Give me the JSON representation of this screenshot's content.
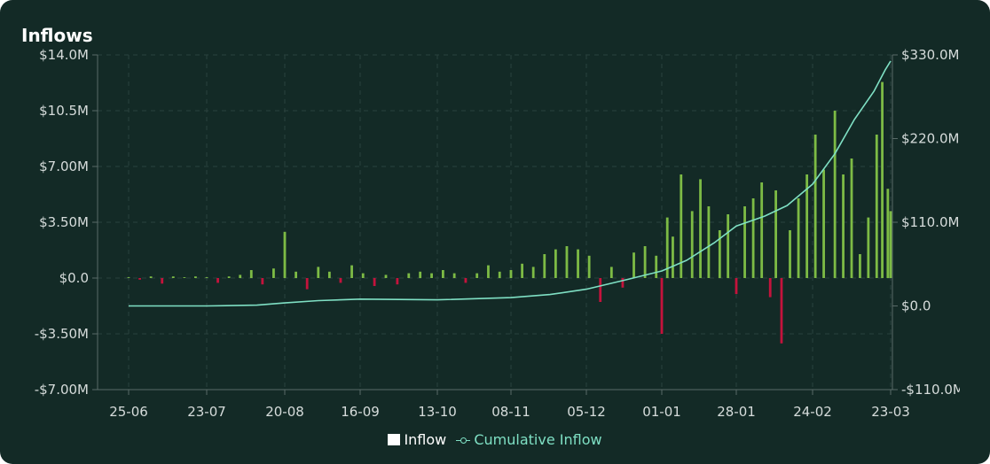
{
  "title": "Inflows",
  "legend": {
    "inflow": "Inflow",
    "cumulative": "Cumulative Inflow"
  },
  "colors": {
    "background": "#132a26",
    "positive_bar": "#7dbb45",
    "negative_bar": "#c4133c",
    "cumulative_line": "#7fe0c4",
    "grid": "#2a413d",
    "axis": "#5a6b68"
  },
  "chart_data": {
    "type": "bar",
    "x_tick_labels": [
      "25-06",
      "23-07",
      "20-08",
      "16-09",
      "13-10",
      "08-11",
      "05-12",
      "01-01",
      "28-01",
      "24-02",
      "23-03"
    ],
    "y_left": {
      "tick_labels": [
        "$14.0M",
        "$10.5M",
        "$7.00M",
        "$3.50M",
        "$0.0",
        "-$3.50M",
        "-$7.00M"
      ],
      "tick_values": [
        14.0,
        10.5,
        7.0,
        3.5,
        0.0,
        -3.5,
        -7.0
      ],
      "range": [
        -7.0,
        14.0
      ],
      "unit": "$M"
    },
    "y_right": {
      "tick_labels": [
        "$330.0M",
        "$220.0M",
        "$110.0M",
        "$0.0",
        "-$110.0M"
      ],
      "tick_values": [
        330,
        220,
        110,
        0,
        -110
      ],
      "range": [
        -110,
        330
      ],
      "unit": "$M"
    },
    "grid": true,
    "legend_position": "bottom-center",
    "series": [
      {
        "name": "Inflow",
        "axis": "left",
        "points": [
          [
            "25-06",
            0.05
          ],
          [
            "29-06",
            -0.1
          ],
          [
            "03-07",
            0.1
          ],
          [
            "07-07",
            -0.35
          ],
          [
            "11-07",
            0.1
          ],
          [
            "15-07",
            0.05
          ],
          [
            "19-07",
            0.1
          ],
          [
            "23-07",
            0.05
          ],
          [
            "27-07",
            -0.3
          ],
          [
            "31-07",
            0.1
          ],
          [
            "04-08",
            0.2
          ],
          [
            "08-08",
            0.5
          ],
          [
            "12-08",
            -0.4
          ],
          [
            "16-08",
            0.6
          ],
          [
            "20-08",
            2.9
          ],
          [
            "24-08",
            0.4
          ],
          [
            "28-08",
            -0.7
          ],
          [
            "01-09",
            0.7
          ],
          [
            "05-09",
            0.4
          ],
          [
            "09-09",
            -0.3
          ],
          [
            "13-09",
            0.8
          ],
          [
            "17-09",
            0.3
          ],
          [
            "21-09",
            -0.5
          ],
          [
            "25-09",
            0.2
          ],
          [
            "29-09",
            -0.4
          ],
          [
            "03-10",
            0.3
          ],
          [
            "07-10",
            0.4
          ],
          [
            "11-10",
            0.3
          ],
          [
            "15-10",
            0.5
          ],
          [
            "19-10",
            0.3
          ],
          [
            "23-10",
            -0.3
          ],
          [
            "27-10",
            0.3
          ],
          [
            "31-10",
            0.8
          ],
          [
            "04-11",
            0.4
          ],
          [
            "08-11",
            0.5
          ],
          [
            "12-11",
            0.9
          ],
          [
            "16-11",
            0.7
          ],
          [
            "20-11",
            1.5
          ],
          [
            "24-11",
            1.8
          ],
          [
            "28-11",
            2.0
          ],
          [
            "02-12",
            1.8
          ],
          [
            "06-12",
            1.4
          ],
          [
            "10-12",
            -1.5
          ],
          [
            "14-12",
            0.7
          ],
          [
            "18-12",
            -0.6
          ],
          [
            "22-12",
            1.6
          ],
          [
            "26-12",
            2.0
          ],
          [
            "30-12",
            1.4
          ],
          [
            "01-01",
            -3.5
          ],
          [
            "03-01",
            3.8
          ],
          [
            "05-01",
            2.6
          ],
          [
            "08-01",
            6.5
          ],
          [
            "12-01",
            4.2
          ],
          [
            "15-01",
            6.2
          ],
          [
            "18-01",
            4.5
          ],
          [
            "22-01",
            3.0
          ],
          [
            "25-01",
            4.0
          ],
          [
            "28-01",
            -1.0
          ],
          [
            "31-01",
            4.5
          ],
          [
            "03-02",
            5.0
          ],
          [
            "06-02",
            6.0
          ],
          [
            "09-02",
            -1.2
          ],
          [
            "11-02",
            5.5
          ],
          [
            "13-02",
            -4.1
          ],
          [
            "16-02",
            3.0
          ],
          [
            "19-02",
            5.0
          ],
          [
            "22-02",
            6.5
          ],
          [
            "25-02",
            9.0
          ],
          [
            "28-02",
            6.8
          ],
          [
            "03-03",
            10.5
          ],
          [
            "06-03",
            6.5
          ],
          [
            "09-03",
            7.5
          ],
          [
            "12-03",
            1.5
          ],
          [
            "15-03",
            3.8
          ],
          [
            "18-03",
            9.0
          ],
          [
            "20-03",
            12.3
          ],
          [
            "22-03",
            5.6
          ],
          [
            "23-03",
            4.2
          ]
        ]
      },
      {
        "name": "Cumulative Inflow",
        "axis": "right",
        "points": [
          [
            "25-06",
            0
          ],
          [
            "23-07",
            0
          ],
          [
            "10-08",
            1
          ],
          [
            "20-08",
            4
          ],
          [
            "01-09",
            7
          ],
          [
            "16-09",
            9
          ],
          [
            "13-10",
            8
          ],
          [
            "08-11",
            11
          ],
          [
            "22-11",
            15
          ],
          [
            "05-12",
            22
          ],
          [
            "20-12",
            35
          ],
          [
            "01-01",
            46
          ],
          [
            "10-01",
            60
          ],
          [
            "20-01",
            83
          ],
          [
            "28-01",
            105
          ],
          [
            "07-02",
            118
          ],
          [
            "15-02",
            132
          ],
          [
            "24-02",
            160
          ],
          [
            "03-03",
            200
          ],
          [
            "10-03",
            245
          ],
          [
            "17-03",
            282
          ],
          [
            "21-03",
            310
          ],
          [
            "23-03",
            322
          ]
        ]
      }
    ]
  }
}
